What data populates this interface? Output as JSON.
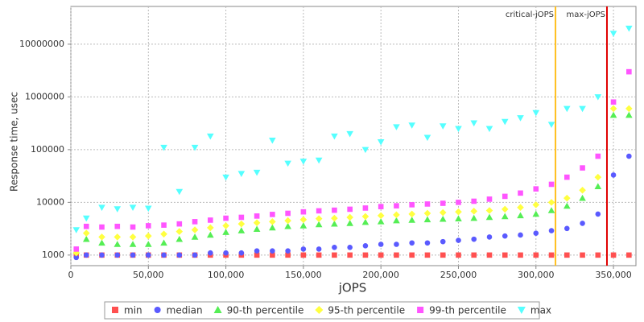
{
  "chart_data": {
    "type": "scatter",
    "x_label": "jOPS",
    "y_label": "Response time, usec",
    "log_y": true,
    "grid": true,
    "xlim": [
      0,
      364500
    ],
    "ylim": [
      630,
      52000000
    ],
    "xticks": [
      0,
      {
        "value": 50000,
        "label": "50,000"
      },
      {
        "value": 100000,
        "label": "100,000"
      },
      {
        "value": 150000,
        "label": "150,000"
      },
      {
        "value": 200000,
        "label": "200,000"
      },
      {
        "value": 250000,
        "label": "250,000"
      },
      {
        "value": 300000,
        "label": "300,000"
      },
      {
        "value": 350000,
        "label": "350,000"
      }
    ],
    "yticks": [
      1000,
      10000,
      100000,
      1000000,
      10000000
    ],
    "vlines": [
      {
        "label": "critical-jOPS",
        "value": 312600,
        "color": "#ffc020"
      },
      {
        "label": "max-jOPS",
        "value": 345800,
        "color": "#e00000"
      }
    ],
    "x": [
      3500,
      10000,
      20000,
      30000,
      40000,
      50000,
      60000,
      70000,
      80000,
      90000,
      100000,
      110000,
      120000,
      130000,
      140000,
      150000,
      160000,
      170000,
      180000,
      190000,
      200000,
      210000,
      220000,
      230000,
      240000,
      250000,
      260000,
      270000,
      280000,
      290000,
      300000,
      310000,
      320000,
      330000,
      340000,
      350000,
      360000
    ],
    "series": [
      {
        "name": "min",
        "color": "#ff5050",
        "marker": "square",
        "values": [
          1000,
          1000,
          1000,
          1000,
          1000,
          1000,
          1000,
          1000,
          1000,
          1000,
          1000,
          1000,
          1000,
          1000,
          1000,
          1000,
          1000,
          1000,
          1000,
          1000,
          1000,
          1000,
          1000,
          1000,
          1000,
          1000,
          1000,
          1000,
          1000,
          1000,
          1000,
          1000,
          1000,
          1000,
          1000,
          1000,
          1000
        ]
      },
      {
        "name": "median",
        "color": "#5a5aff",
        "marker": "circle",
        "values": [
          900,
          1000,
          1000,
          1000,
          1000,
          1000,
          1000,
          1000,
          1000,
          1100,
          1100,
          1100,
          1200,
          1200,
          1200,
          1300,
          1300,
          1400,
          1400,
          1500,
          1600,
          1600,
          1700,
          1700,
          1800,
          1900,
          2000,
          2200,
          2300,
          2400,
          2600,
          2900,
          3200,
          4000,
          6000,
          33000,
          75000
        ]
      },
      {
        "name": "90-th percentile",
        "color": "#55ee55",
        "marker": "triangle-up",
        "values": [
          1200,
          2000,
          1700,
          1600,
          1600,
          1600,
          1700,
          2000,
          2200,
          2400,
          2700,
          2900,
          3100,
          3300,
          3500,
          3600,
          3800,
          3900,
          4000,
          4200,
          4300,
          4500,
          4600,
          4700,
          4800,
          4900,
          5000,
          5200,
          5400,
          5600,
          6000,
          7000,
          8500,
          12000,
          20000,
          450000,
          450000
        ]
      },
      {
        "name": "95-th percentile",
        "color": "#ffff40",
        "marker": "diamond",
        "values": [
          1100,
          2600,
          2200,
          2200,
          2200,
          2300,
          2500,
          2800,
          3000,
          3300,
          3600,
          3900,
          4100,
          4300,
          4500,
          4700,
          4900,
          5000,
          5200,
          5400,
          5600,
          5800,
          6000,
          6200,
          6400,
          6600,
          6800,
          7000,
          7400,
          8000,
          9000,
          10000,
          12000,
          17000,
          30000,
          600000,
          600000
        ]
      },
      {
        "name": "99-th percentile",
        "color": "#ff55ff",
        "marker": "square",
        "values": [
          1300,
          3500,
          3400,
          3500,
          3400,
          3600,
          3700,
          3900,
          4300,
          4600,
          5000,
          5200,
          5500,
          5900,
          6200,
          6600,
          6900,
          7100,
          7400,
          7800,
          8300,
          8600,
          9000,
          9300,
          9600,
          10000,
          10500,
          11500,
          13000,
          15000,
          18000,
          22000,
          30000,
          45000,
          75000,
          800000,
          3000000
        ]
      },
      {
        "name": "max",
        "color": "#55ffff",
        "marker": "triangle-down",
        "values": [
          3000,
          5000,
          8000,
          7500,
          8000,
          7700,
          110000,
          16000,
          110000,
          180000,
          30000,
          35000,
          37000,
          150000,
          55000,
          60000,
          63000,
          180000,
          200000,
          100000,
          140000,
          270000,
          290000,
          170000,
          280000,
          250000,
          320000,
          250000,
          340000,
          400000,
          500000,
          300000,
          600000,
          600000,
          1000000,
          16000000,
          20000000
        ]
      }
    ]
  }
}
